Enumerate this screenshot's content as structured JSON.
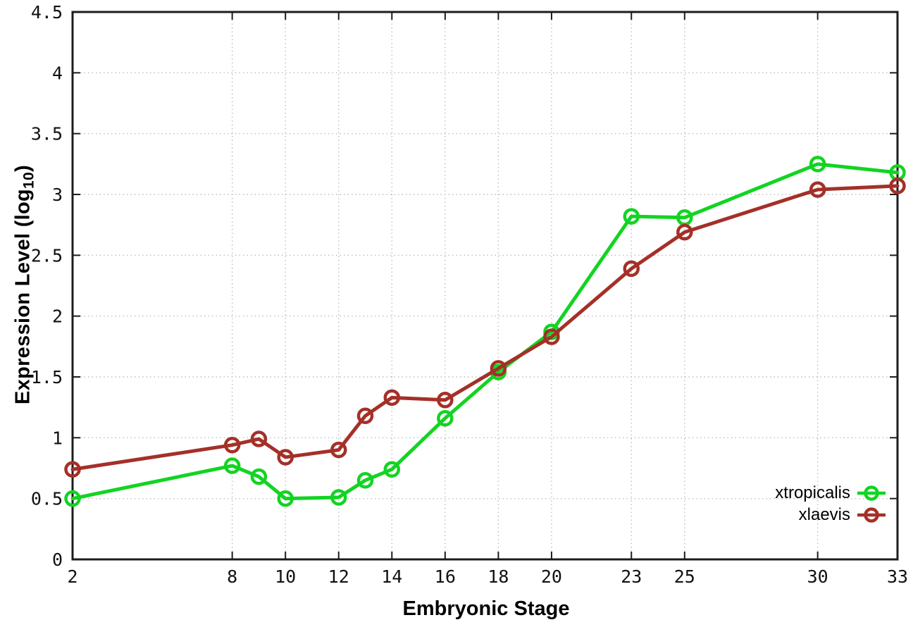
{
  "chart_data": {
    "type": "line",
    "title": "",
    "xlabel": "Embryonic Stage",
    "ylabel": "Expression Level (log10)",
    "ylabel_parts": {
      "pre": "Expression Level (log",
      "sub": "10",
      "post": ")"
    },
    "x": [
      2,
      8,
      9,
      10,
      12,
      13,
      14,
      16,
      18,
      20,
      23,
      25,
      30,
      33
    ],
    "series": [
      {
        "name": "xtropicalis",
        "color": "#12d422",
        "marker": "open-circle",
        "values": [
          0.5,
          0.77,
          0.68,
          0.5,
          0.51,
          0.65,
          0.74,
          1.16,
          1.54,
          1.87,
          2.82,
          2.81,
          3.25,
          3.18
        ]
      },
      {
        "name": "xlaevis",
        "color": "#a43028",
        "marker": "open-circle",
        "values": [
          0.74,
          0.94,
          0.99,
          0.84,
          0.9,
          1.18,
          1.33,
          1.31,
          1.57,
          1.83,
          2.39,
          2.69,
          3.04,
          3.07
        ]
      }
    ],
    "xlim": [
      2,
      33
    ],
    "ylim": [
      0,
      4.5
    ],
    "x_ticks": [
      2,
      8,
      10,
      12,
      14,
      16,
      18,
      20,
      23,
      25,
      30,
      33
    ],
    "y_ticks": [
      0,
      0.5,
      1,
      1.5,
      2,
      2.5,
      3,
      3.5,
      4,
      4.5
    ],
    "grid": true,
    "grid_style": "dotted",
    "legend_position": "bottom-right",
    "colors": {
      "grid": "#bdbdbd",
      "axis": "#1c1c1c",
      "background": "#ffffff",
      "text": "#000000"
    }
  }
}
